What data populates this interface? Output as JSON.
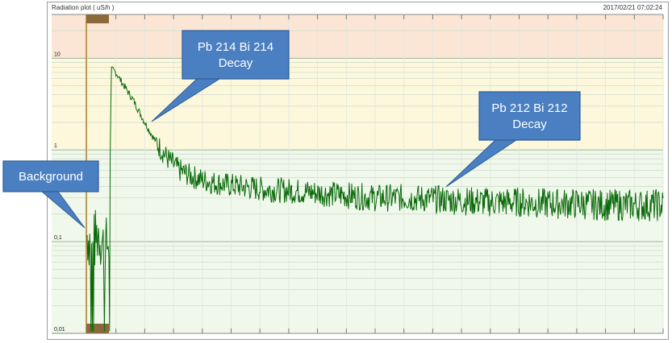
{
  "title": "Radiation plot ( uS/h )",
  "timestamp": "2017/02/21 07:02:24",
  "chart_data": {
    "type": "line",
    "title": "Radiation plot ( uS/h )",
    "xlabel": "",
    "ylabel": "uS/h",
    "yscale": "log",
    "ylim": [
      0.01,
      30
    ],
    "xlim": [
      0,
      100
    ],
    "y_ticks": [
      {
        "value": 10,
        "label": "10"
      },
      {
        "value": 1,
        "label": "1"
      },
      {
        "value": 0.1,
        "label": "0,1"
      },
      {
        "value": 0.01,
        "label": "0,01"
      }
    ],
    "grid": true,
    "bands": [
      {
        "from": 10,
        "to": 30,
        "color": "#fbe6d6"
      },
      {
        "from": 1,
        "to": 10,
        "color": "#fdf8dc"
      },
      {
        "from": 0.01,
        "to": 1,
        "color": "#eff8ea"
      }
    ],
    "series": [
      {
        "color": "#0a6a0a",
        "x": [
          0,
          1,
          2,
          3,
          3.8,
          4.2,
          5,
          6,
          8,
          10,
          12,
          14,
          16,
          18,
          20,
          22,
          25,
          28,
          31,
          35,
          40,
          45,
          50,
          55,
          60,
          65,
          70,
          75,
          80,
          85,
          90,
          95,
          100
        ],
        "y": [
          0.12,
          0.09,
          0.13,
          0.08,
          0.1,
          7.5,
          7.0,
          5.5,
          3.5,
          2.0,
          1.2,
          0.8,
          0.6,
          0.52,
          0.47,
          0.44,
          0.41,
          0.39,
          0.37,
          0.36,
          0.34,
          0.32,
          0.3,
          0.3,
          0.29,
          0.28,
          0.27,
          0.27,
          0.26,
          0.26,
          0.25,
          0.25,
          0.25
        ]
      }
    ],
    "annotations": [
      {
        "text": "Background"
      },
      {
        "text": "Pb 214 Bi 214 Decay"
      },
      {
        "text": "Pb 212 Bi 212 Decay"
      }
    ]
  }
}
